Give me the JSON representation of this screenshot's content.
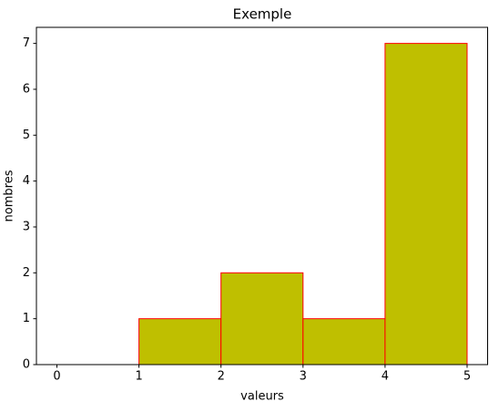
{
  "chart_data": {
    "type": "histogram",
    "title": "Exemple",
    "x_label": "valeurs",
    "y_label": "nombres",
    "bins": [
      0,
      1,
      2,
      3,
      4,
      5
    ],
    "values": [
      0,
      1,
      2,
      1,
      7
    ],
    "color": "#bfbf00",
    "edgecolor": "#ff0000",
    "xlim": [
      -0.25,
      5.25
    ],
    "xticks": [
      0,
      1,
      2,
      3,
      4,
      5
    ],
    "ylim": [
      0,
      7.35
    ],
    "yticks": [
      0,
      1,
      2,
      3,
      4,
      5,
      6,
      7
    ],
    "grid": false
  }
}
